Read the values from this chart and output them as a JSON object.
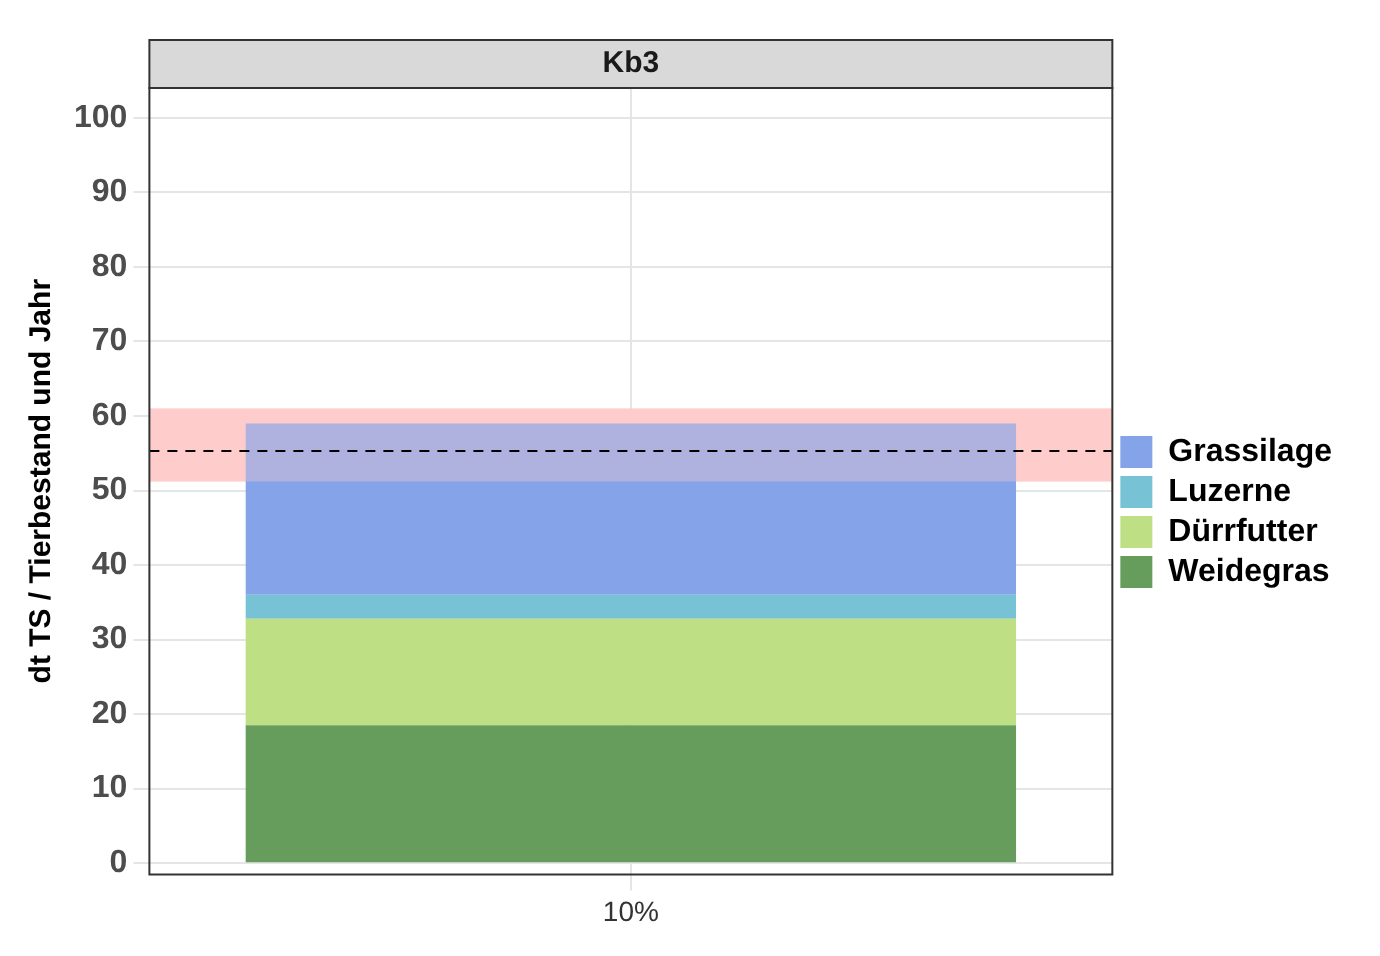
{
  "chart_data": {
    "type": "bar",
    "title": "Kb3",
    "ylabel": "dt TS / Tierbestand und Jahr",
    "categories": [
      "10%"
    ],
    "stacked": true,
    "series": [
      {
        "name": "Weidegras",
        "color": "#669c5c",
        "values": [
          18.5
        ]
      },
      {
        "name": "Dürrfutter",
        "color": "#bedf84",
        "values": [
          14.3
        ]
      },
      {
        "name": "Luzerne",
        "color": "#78c2d6",
        "values": [
          3.2
        ]
      },
      {
        "name": "Grassilage",
        "color": "#84a3e8",
        "values": [
          23.0
        ]
      }
    ],
    "ylim": [
      -1.5,
      104
    ],
    "yticks": [
      0,
      10,
      20,
      30,
      40,
      50,
      60,
      70,
      80,
      90,
      100
    ],
    "grid": true,
    "legend": "right",
    "ref_lines": [
      {
        "axis": "y",
        "value": 55.3,
        "line_style": "dashed",
        "color": "#000000"
      }
    ],
    "bands": [
      {
        "axis": "y",
        "from": 51.2,
        "to": 61.0,
        "color": "#ffcccc"
      }
    ]
  }
}
